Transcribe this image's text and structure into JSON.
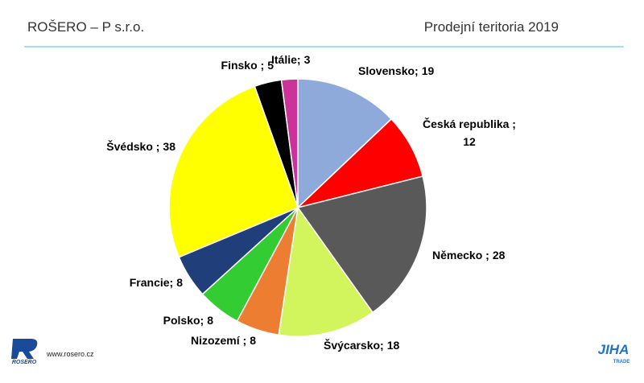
{
  "header": {
    "left": "ROŠERO – P s.r.o.",
    "right": "Prodejní teritoria 2019"
  },
  "footer": {
    "logo_left": "ROSERO",
    "url": "www.rosero.cz",
    "logo_right": "JIHA",
    "logo_right_sub": "TRADE"
  },
  "chart_data": {
    "type": "pie",
    "categories": [
      "Slovensko;",
      "Česká republika ;",
      "Německo ;",
      "Švýcarsko;",
      "Nizozemí ;",
      "Polsko;",
      "Francie;",
      "Švédsko ;",
      "Finsko ;",
      "Itálie;"
    ],
    "values": [
      19,
      12,
      28,
      18,
      8,
      8,
      8,
      38,
      5,
      3
    ],
    "colors": [
      "#8eaadb",
      "#ff0000",
      "#595959",
      "#d2f55e",
      "#ed7d31",
      "#33cc33",
      "#203f7a",
      "#ffff00",
      "#000000",
      "#cc3399"
    ]
  }
}
